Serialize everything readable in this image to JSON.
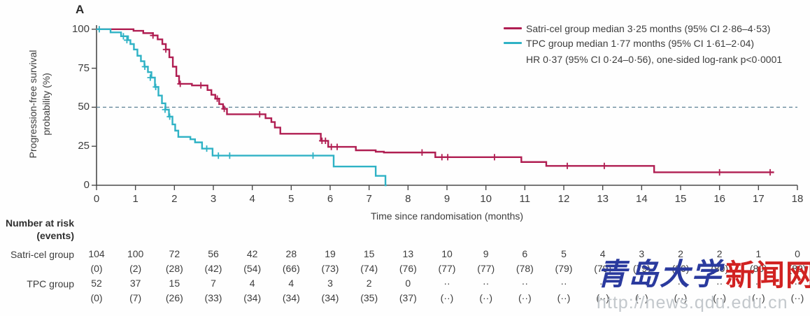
{
  "panel_label": "A",
  "colors": {
    "satri": "#b01e52",
    "tpc": "#2fb2c5",
    "dashed_ref": "#5d8295",
    "axis": "#4a4a4a",
    "text": "#3d3d3d",
    "watermark_blue": "#2a3a9e",
    "watermark_red": "#d12221",
    "watermark_url_gray": "#c3c8cc"
  },
  "legend": {
    "items": [
      {
        "label": "Satri-cel group median 3·25 months (95% CI 2·86–4·53)",
        "color_key": "satri"
      },
      {
        "label": "TPC group median 1·77 months (95% CI 1·61–2·04)",
        "color_key": "tpc"
      }
    ],
    "note": "HR 0·37 (95% CI 0·24–0·56), one-sided log-rank p<0·0001"
  },
  "chart_data": {
    "type": "line",
    "subtype": "kaplan-meier-step",
    "title": "",
    "xlabel": "Time since randomisation (months)",
    "ylabel_line1": "Progression-free survival",
    "ylabel_line2": "probability (%)",
    "xlim": [
      0,
      18
    ],
    "ylim": [
      0,
      100
    ],
    "xticks": [
      0,
      1,
      2,
      3,
      4,
      5,
      6,
      7,
      8,
      9,
      10,
      11,
      12,
      13,
      14,
      15,
      16,
      17,
      18
    ],
    "yticks": [
      0,
      25,
      50,
      75,
      100
    ],
    "grid": "off",
    "reference_line_y": 50,
    "legend_position": "top-right",
    "series": [
      {
        "name": "Satri-cel group",
        "median_months": "3·25",
        "median_ci": "2·86–4·53",
        "color_key": "satri",
        "end_t": 17.4,
        "steps": [
          [
            0,
            100
          ],
          [
            0.95,
            99
          ],
          [
            1.2,
            97.5
          ],
          [
            1.45,
            96
          ],
          [
            1.57,
            93.5
          ],
          [
            1.69,
            90.5
          ],
          [
            1.78,
            87
          ],
          [
            1.87,
            82
          ],
          [
            1.96,
            76
          ],
          [
            2.05,
            70
          ],
          [
            2.12,
            65
          ],
          [
            2.45,
            64
          ],
          [
            2.85,
            61
          ],
          [
            2.95,
            58
          ],
          [
            3.05,
            55.5
          ],
          [
            3.15,
            52
          ],
          [
            3.25,
            49
          ],
          [
            3.35,
            45.5
          ],
          [
            4.34,
            43
          ],
          [
            4.49,
            40.5
          ],
          [
            4.58,
            37
          ],
          [
            4.72,
            33
          ],
          [
            5.76,
            28.5
          ],
          [
            5.95,
            24.6
          ],
          [
            6.66,
            22.4
          ],
          [
            7.17,
            21.5
          ],
          [
            7.38,
            21
          ],
          [
            8.7,
            18
          ],
          [
            10.91,
            14.9
          ],
          [
            11.55,
            12.4
          ],
          [
            14.32,
            8.3
          ]
        ],
        "censors": [
          [
            1.45,
            96
          ],
          [
            1.78,
            87
          ],
          [
            2.15,
            65
          ],
          [
            2.68,
            64
          ],
          [
            3.1,
            55.5
          ],
          [
            3.28,
            49
          ],
          [
            4.19,
            45.5
          ],
          [
            5.79,
            28.5
          ],
          [
            5.88,
            28.5
          ],
          [
            6.03,
            24.6
          ],
          [
            6.18,
            24.6
          ],
          [
            8.36,
            21
          ],
          [
            8.87,
            18
          ],
          [
            9.02,
            18
          ],
          [
            10.22,
            18
          ],
          [
            12.09,
            12.4
          ],
          [
            13.04,
            12.4
          ],
          [
            16.0,
            8.3
          ],
          [
            17.3,
            8.3
          ]
        ]
      },
      {
        "name": "TPC group",
        "median_months": "1·77",
        "median_ci": "1·61–2·04",
        "color_key": "tpc",
        "end_t": 7.45,
        "steps": [
          [
            0,
            100
          ],
          [
            0.36,
            98
          ],
          [
            0.63,
            95.5
          ],
          [
            0.81,
            93
          ],
          [
            0.87,
            90.5
          ],
          [
            0.96,
            87
          ],
          [
            1.05,
            83
          ],
          [
            1.14,
            79.5
          ],
          [
            1.23,
            76
          ],
          [
            1.32,
            72.5
          ],
          [
            1.41,
            69
          ],
          [
            1.5,
            63
          ],
          [
            1.59,
            57.5
          ],
          [
            1.68,
            52.5
          ],
          [
            1.77,
            48.5
          ],
          [
            1.86,
            44
          ],
          [
            1.95,
            39
          ],
          [
            2.02,
            35
          ],
          [
            2.1,
            31
          ],
          [
            2.41,
            29.5
          ],
          [
            2.53,
            27.5
          ],
          [
            2.71,
            23.5
          ],
          [
            2.98,
            19
          ],
          [
            6.09,
            12
          ],
          [
            7.17,
            6
          ],
          [
            7.42,
            0
          ]
        ],
        "censors": [
          [
            0.07,
            100
          ],
          [
            0.69,
            95.5
          ],
          [
            0.78,
            93
          ],
          [
            1.24,
            76
          ],
          [
            1.38,
            69
          ],
          [
            1.52,
            63
          ],
          [
            1.76,
            48.5
          ],
          [
            1.88,
            44
          ],
          [
            2.83,
            23.5
          ],
          [
            3.13,
            19
          ],
          [
            3.42,
            19
          ],
          [
            5.56,
            19
          ]
        ]
      }
    ],
    "hr_annotation": "HR 0·37 (95% CI 0·24–0·56), one-sided log-rank p<0·0001"
  },
  "risk_table": {
    "header_line1": "Number at risk",
    "header_line2": "(events)",
    "rows": [
      {
        "label": "Satri-cel group",
        "at_risk": [
          "104",
          "100",
          "72",
          "56",
          "42",
          "28",
          "19",
          "15",
          "13",
          "10",
          "9",
          "6",
          "5",
          "4",
          "3",
          "2",
          "2",
          "1",
          "0"
        ],
        "events": [
          "(0)",
          "(2)",
          "(28)",
          "(42)",
          "(54)",
          "(66)",
          "(73)",
          "(74)",
          "(76)",
          "(77)",
          "(77)",
          "(78)",
          "(79)",
          "(79)",
          "(79)",
          "(80)",
          "(80)",
          "(80)",
          "(80)"
        ]
      },
      {
        "label": "TPC group",
        "at_risk": [
          "52",
          "37",
          "15",
          "7",
          "4",
          "4",
          "3",
          "2",
          "0",
          "··",
          "··",
          "··",
          "··",
          "··",
          "··",
          "··",
          "··",
          "··",
          "··"
        ],
        "events": [
          "(0)",
          "(7)",
          "(26)",
          "(33)",
          "(34)",
          "(34)",
          "(34)",
          "(35)",
          "(37)",
          "(··)",
          "(··)",
          "(··)",
          "(··)",
          "(··)",
          "(··)",
          "(··)",
          "(··)",
          "(··)",
          "(··)"
        ]
      }
    ]
  },
  "watermark": {
    "text_blue": "青岛大学",
    "text_red": "新闻网",
    "url": "http://news.qdu.edu.cn"
  }
}
